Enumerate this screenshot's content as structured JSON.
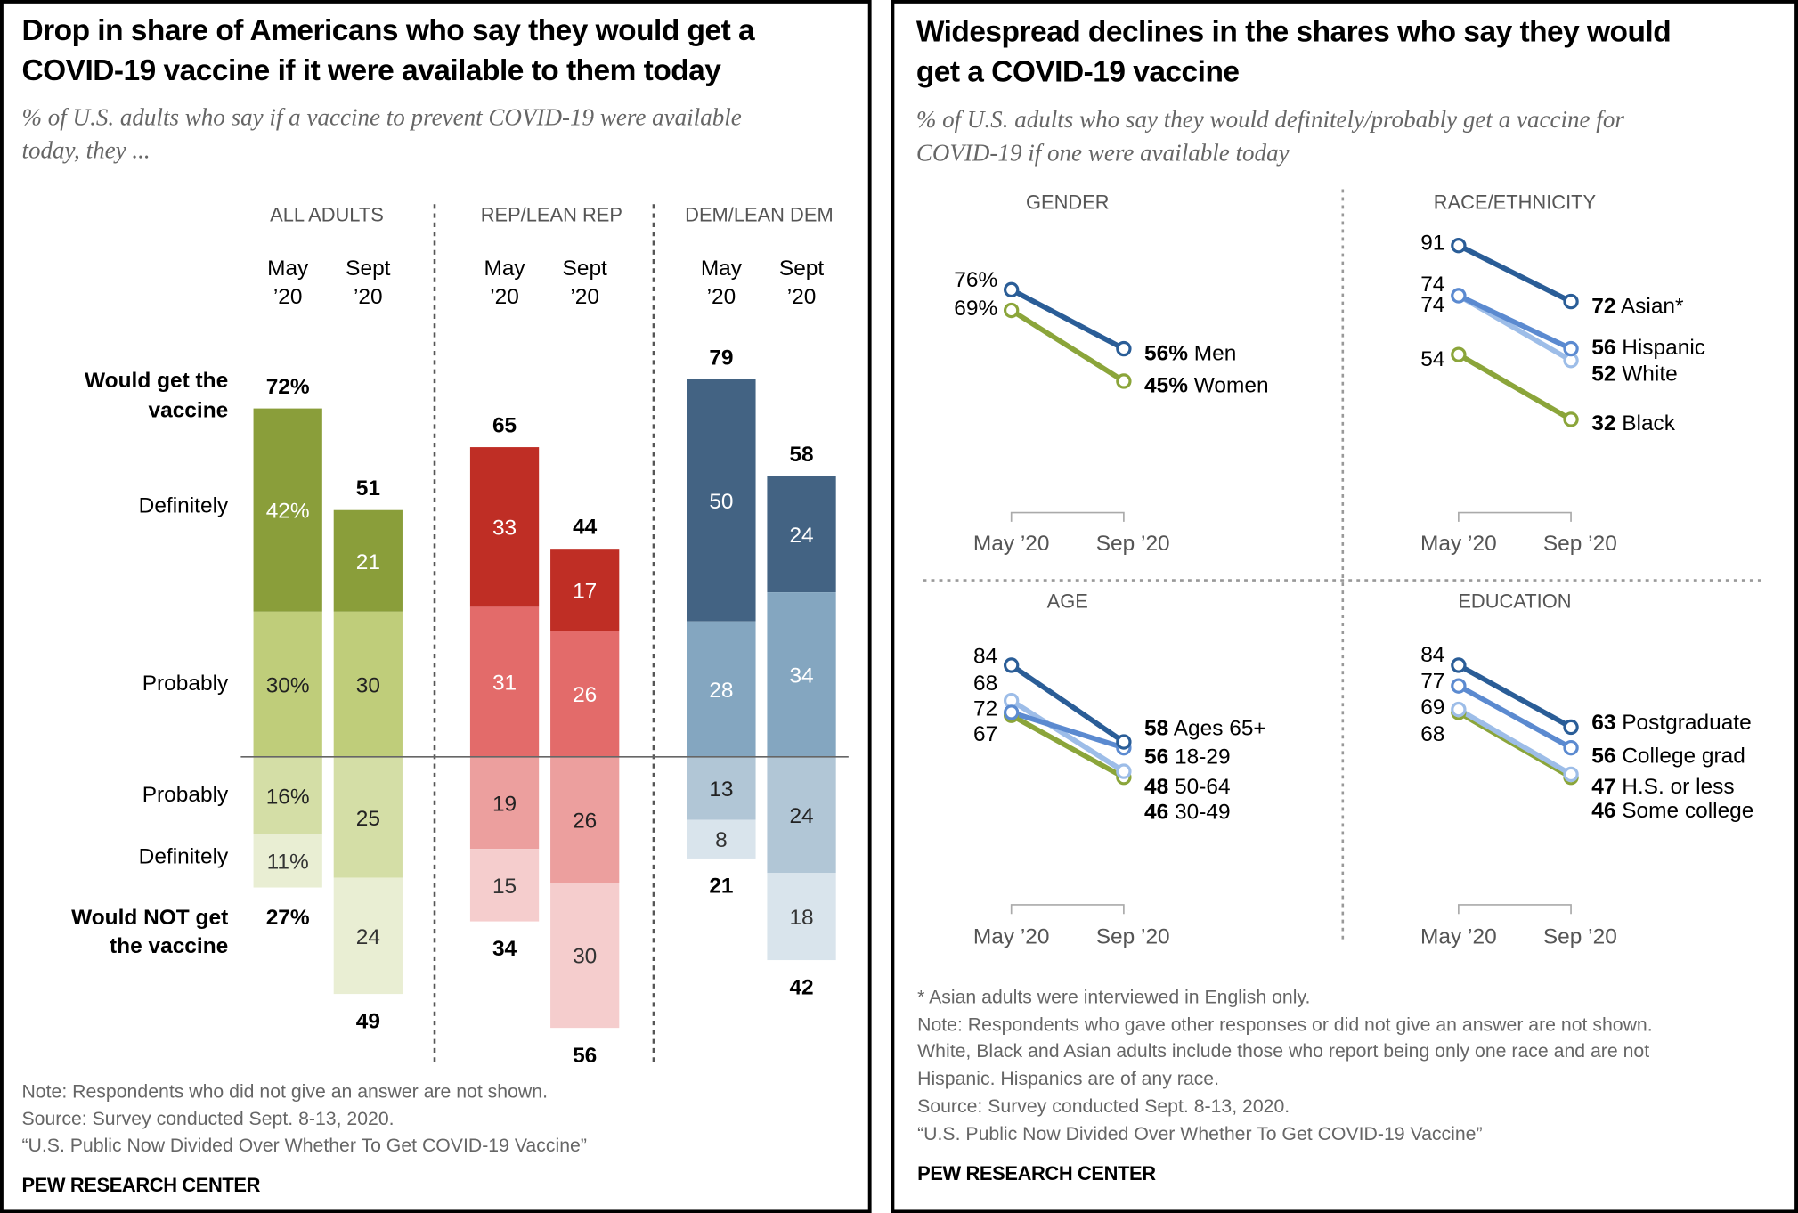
{
  "left": {
    "title_lines": [
      "Drop in share of Americans who say they would get a",
      "COVID-19 vaccine if it were available to them today"
    ],
    "subtitle_lines": [
      "% of U.S. adults who say if a vaccine to prevent COVID-19 were available",
      "today, they ..."
    ],
    "row_labels": {
      "would_get": [
        "Would get the",
        "vaccine"
      ],
      "definitely": "Definitely",
      "probably": "Probably",
      "probably_not": "Probably",
      "definitely_not": "Definitely",
      "would_not": [
        "Would NOT get",
        "the vaccine"
      ]
    },
    "notes": [
      "Note: Respondents who did not give an answer are not shown.",
      "Source: Survey conducted Sept. 8-13, 2020.",
      "“U.S. Public Now Divided Over Whether To Get COVID-19 Vaccine”"
    ],
    "brand": "PEW RESEARCH CENTER"
  },
  "right": {
    "title_lines": [
      "Widespread declines in the shares who say they would",
      "get a COVID-19 vaccine"
    ],
    "subtitle_lines": [
      "% of U.S. adults who say they would definitely/probably get a vaccine for",
      "COVID-19 if one were available today"
    ],
    "notes": [
      "* Asian adults were interviewed in English only.",
      "Note: Respondents who gave other responses or did not give an answer are not shown.",
      "White, Black and Asian adults include those who report being only one race and are not",
      "Hispanic. Hispanics are of any race.",
      "Source: Survey conducted Sept. 8-13, 2020.",
      "“U.S. Public Now Divided Over Whether To Get COVID-19 Vaccine”"
    ],
    "brand": "PEW RESEARCH CENTER"
  },
  "chart_data": [
    {
      "type": "bar",
      "subtype": "diverging-stacked",
      "period_labels": [
        [
          "May",
          "’20"
        ],
        [
          "Sept",
          "’20"
        ]
      ],
      "groups": [
        {
          "name": "ALL ADULTS",
          "colors": [
            "#8a9e3a",
            "#bfcd7a",
            "#d4dea6",
            "#e9eed3"
          ],
          "periods": [
            {
              "would_get": 72,
              "definitely": 42,
              "probably": 30,
              "probably_not": 16,
              "definitely_not": 11,
              "would_not": 27
            },
            {
              "would_get": 51,
              "definitely": 21,
              "probably": 30,
              "probably_not": 25,
              "definitely_not": 24,
              "would_not": 49
            }
          ]
        },
        {
          "name": "REP/LEAN REP",
          "colors": [
            "#bf2e25",
            "#e36b6a",
            "#ec9f9e",
            "#f5cdcd"
          ],
          "periods": [
            {
              "would_get": 65,
              "definitely": 33,
              "probably": 31,
              "probably_not": 19,
              "definitely_not": 15,
              "would_not": 34
            },
            {
              "would_get": 44,
              "definitely": 17,
              "probably": 26,
              "probably_not": 26,
              "definitely_not": 30,
              "would_not": 56
            }
          ]
        },
        {
          "name": "DEM/LEAN DEM",
          "colors": [
            "#436383",
            "#84a6c0",
            "#b1c6d6",
            "#d9e4ec"
          ],
          "periods": [
            {
              "would_get": 79,
              "definitely": 50,
              "probably": 28,
              "probably_not": 13,
              "definitely_not": 8,
              "would_not": 21
            },
            {
              "would_get": 58,
              "definitely": 24,
              "probably": 34,
              "probably_not": 24,
              "definitely_not": 18,
              "would_not": 42
            }
          ]
        }
      ]
    },
    {
      "type": "line",
      "subtype": "slope",
      "x_labels": [
        "May ’20",
        "Sep ’20"
      ],
      "panels": [
        {
          "title": "GENDER",
          "percent": true,
          "series": [
            {
              "name": "Men",
              "values": [
                76,
                56
              ],
              "color": "#2a5d97"
            },
            {
              "name": "Women",
              "values": [
                69,
                45
              ],
              "color": "#8ba53a"
            }
          ]
        },
        {
          "title": "RACE/ETHNICITY",
          "percent": false,
          "series": [
            {
              "name": "Asian*",
              "values": [
                91,
                72
              ],
              "color": "#2a5d97"
            },
            {
              "name": "Hispanic",
              "values": [
                74,
                56
              ],
              "color": "#5b8ad0"
            },
            {
              "name": "White",
              "values": [
                74,
                52
              ],
              "color": "#9dbde8"
            },
            {
              "name": "Black",
              "values": [
                54,
                32
              ],
              "color": "#8ba53a"
            }
          ]
        },
        {
          "title": "AGE",
          "percent": false,
          "series": [
            {
              "name": "Ages 65+",
              "values": [
                84,
                58
              ],
              "color": "#2a5d97"
            },
            {
              "name": "18-29",
              "values": [
                68,
                56
              ],
              "color": "#5b8ad0"
            },
            {
              "name": "50-64",
              "values": [
                72,
                48
              ],
              "color": "#9dbde8"
            },
            {
              "name": "30-49",
              "values": [
                67,
                46
              ],
              "color": "#8ba53a"
            }
          ]
        },
        {
          "title": "EDUCATION",
          "percent": false,
          "series": [
            {
              "name": "Postgraduate",
              "values": [
                84,
                63
              ],
              "color": "#2a5d97"
            },
            {
              "name": "College grad",
              "values": [
                77,
                56
              ],
              "color": "#5b8ad0"
            },
            {
              "name": "H.S. or less",
              "values": [
                69,
                47
              ],
              "color": "#9dbde8"
            },
            {
              "name": "Some college",
              "values": [
                68,
                46
              ],
              "color": "#8ba53a"
            }
          ]
        }
      ]
    }
  ]
}
